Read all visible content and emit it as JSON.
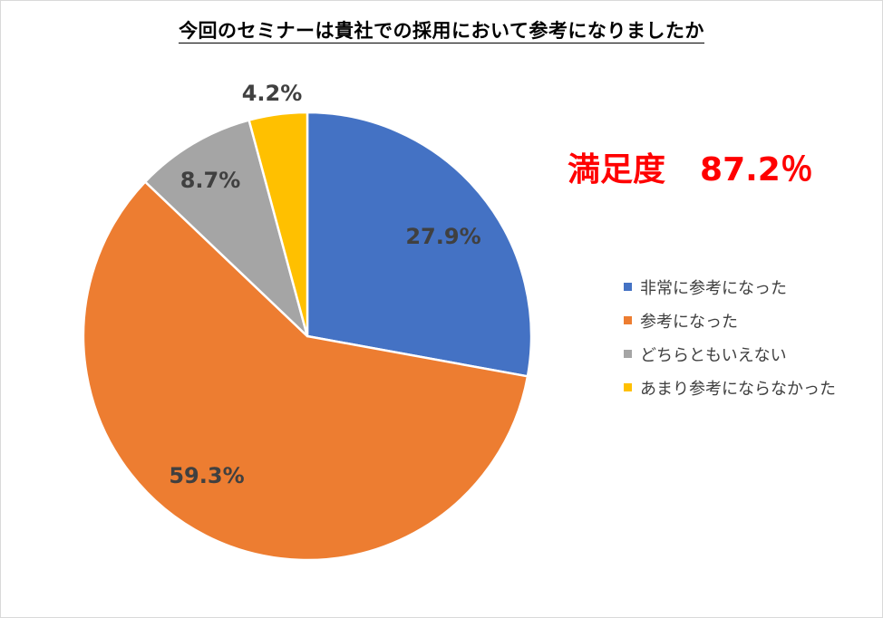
{
  "chart_data": {
    "type": "pie",
    "title": "今回のセミナーは貴社での採用において参考になりましたか",
    "categories": [
      "非常に参考になった",
      "参考になった",
      "どちらともいえない",
      "あまり参考にならなかった"
    ],
    "values": [
      27.9,
      59.3,
      8.7,
      4.2
    ],
    "data_labels": [
      "27.9%",
      "59.3%",
      "8.7%",
      "4.2%"
    ],
    "colors": [
      "#4472c4",
      "#ed7d31",
      "#a5a5a5",
      "#ffc000"
    ],
    "legend_position": "right",
    "start_angle_deg": 0,
    "direction": "clockwise"
  },
  "annotation": {
    "label": "満足度",
    "value": "87.2％",
    "color": "#ff0000"
  }
}
